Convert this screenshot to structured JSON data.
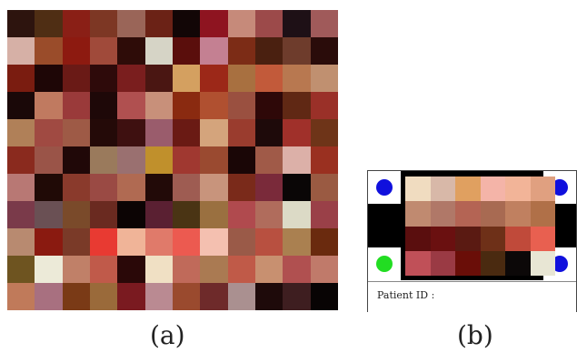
{
  "captions": {
    "a": "(a)",
    "b": "(b)"
  },
  "patient_field": {
    "label": "Patient ID :"
  },
  "corner_dot_colors": {
    "top_left": "#1010dd",
    "top_right": "#1010dd",
    "bottom_left": "#22dd22",
    "bottom_right": "#1010dd"
  },
  "grid_a_colors": [
    [
      "#2d140e",
      "#4f2e14",
      "#8a1f16",
      "#7d3724",
      "#9a6558",
      "#6b2216",
      "#120606",
      "#8e1420",
      "#c68a7a",
      "#9c4a4a",
      "#1e1016",
      "#a05a5a"
    ],
    [
      "#d6b0a6",
      "#9a4c2a",
      "#8d1a10",
      "#a04a3a",
      "#2e0c08",
      "#d6d4c6",
      "#5a0e0c",
      "#c48092",
      "#7c2c16",
      "#4a2010",
      "#6e3c2c",
      "#2a0c0a"
    ],
    [
      "#7a1c10",
      "#1e0606",
      "#6a1a16",
      "#2e0a0a",
      "#7a1e1e",
      "#4a1612",
      "#d4a060",
      "#9c2818",
      "#a87040",
      "#c25a3a",
      "#b87850",
      "#c09070"
    ],
    [
      "#1a0808",
      "#c07a60",
      "#9a3a3a",
      "#1e0808",
      "#b05050",
      "#c8907a",
      "#8a2a10",
      "#b05030",
      "#9a5040",
      "#2e0808",
      "#602814",
      "#9a3028"
    ],
    [
      "#b08058",
      "#a04a42",
      "#9e5a46",
      "#240a08",
      "#3e1010",
      "#9a5c6c",
      "#6a1a14",
      "#d4a47c",
      "#9a3c2e",
      "#1e0a0a",
      "#a0302a",
      "#6e3418"
    ],
    [
      "#8a2a1e",
      "#9a5448",
      "#200808",
      "#9a7a5c",
      "#9a7070",
      "#c0902c",
      "#a03830",
      "#9a4a30",
      "#1a0606",
      "#a05a48",
      "#dcb0a8",
      "#9a3020"
    ],
    [
      "#b87874",
      "#200a06",
      "#8a3a2c",
      "#9a4a44",
      "#b06a52",
      "#220a08",
      "#9e5c52",
      "#c8947c",
      "#7a2a1a",
      "#7a2a3a",
      "#0a0606",
      "#9a5a42"
    ],
    [
      "#7a3a4a",
      "#6a5054",
      "#7a4a2a",
      "#6a2a20",
      "#0c0404",
      "#5a2032",
      "#4a3414",
      "#9a7040",
      "#b04a4e",
      "#b06c5c",
      "#dcdac6",
      "#9a4048"
    ],
    [
      "#b88a70",
      "#8a1a10",
      "#7a3a28",
      "#e83a32",
      "#f0b498",
      "#e07a6a",
      "#ec5a50",
      "#f4c0b0",
      "#9a5a48",
      "#b85040",
      "#aa8050",
      "#6a2a0e"
    ],
    [
      "#6e5420",
      "#ecead8",
      "#c08068",
      "#c05a4a",
      "#2a0808",
      "#f0e0c4",
      "#c06a5a",
      "#aa7a52",
      "#c05a48",
      "#c89070",
      "#b05050",
      "#c07a6a"
    ],
    [
      "#c07a5a",
      "#a87080",
      "#7a3a16",
      "#9a6a3a",
      "#7a1a20",
      "#ba8a92",
      "#9a4a2e",
      "#6e2a2a",
      "#aa9090",
      "#1e0a0a",
      "#3e1e20",
      "#080404"
    ]
  ],
  "grid_b_colors": [
    [
      "#f0dcc0",
      "#d8b8a8",
      "#e0a060",
      "#f4b4a8",
      "#f2b498",
      "#e0a080"
    ],
    [
      "#c08a70",
      "#b07868",
      "#b46454",
      "#a86a52",
      "#c08060",
      "#b07048"
    ],
    [
      "#5a0e0e",
      "#6a1010",
      "#5a1a12",
      "#6e3018",
      "#c04a3a",
      "#e86050"
    ],
    [
      "#c05058",
      "#9a3a44",
      "#6a0e08",
      "#4a2a10",
      "#0c0808",
      "#e8e6d4"
    ]
  ]
}
